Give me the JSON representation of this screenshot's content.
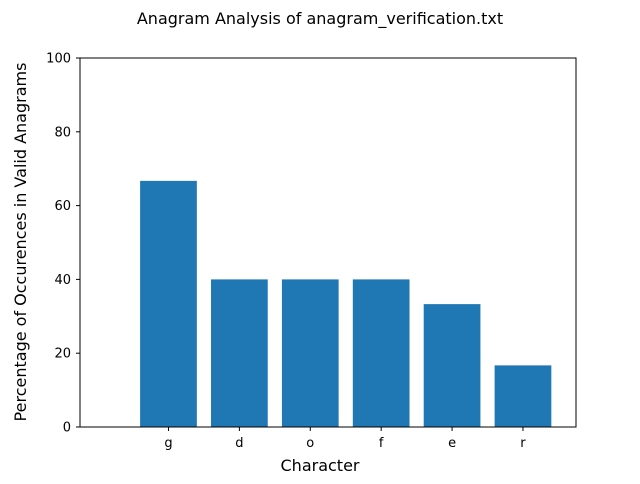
{
  "chart_data": {
    "type": "bar",
    "title": "Anagram Analysis of anagram_verification.txt",
    "xlabel": "Character",
    "ylabel": "Percentage of Occurences in Valid Anagrams",
    "categories": [
      "g",
      "d",
      "o",
      "f",
      "e",
      "r"
    ],
    "values": [
      66.7,
      40.0,
      40.0,
      40.0,
      33.3,
      16.7
    ],
    "ylim": [
      0,
      100
    ],
    "yticks": [
      0,
      20,
      40,
      60,
      80,
      100
    ],
    "grid": false,
    "legend": "none",
    "bar_color": "#1f77b4"
  }
}
